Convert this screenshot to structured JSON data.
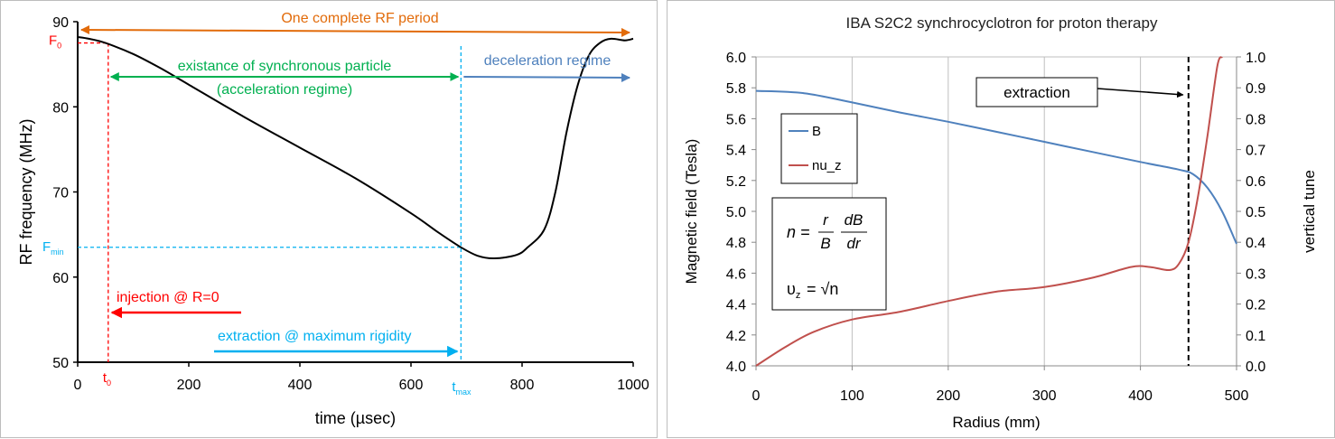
{
  "chart_data": [
    {
      "type": "line",
      "xlabel": "time (µsec)",
      "ylabel": "RF frequency (MHz)",
      "xlim": [
        0,
        1000
      ],
      "ylim": [
        50,
        90
      ],
      "xticks": [
        "0",
        "200",
        "400",
        "600",
        "800",
        "1000"
      ],
      "yticks": [
        "50",
        "60",
        "70",
        "80",
        "90"
      ],
      "series": [
        {
          "name": "RF frequency",
          "color": "#000000",
          "points": [
            [
              0,
              88.2
            ],
            [
              20,
              88.0
            ],
            [
              50,
              87.5
            ],
            [
              100,
              86.2
            ],
            [
              150,
              84.5
            ],
            [
              200,
              82.6
            ],
            [
              300,
              78.8
            ],
            [
              400,
              75.2
            ],
            [
              500,
              71.6
            ],
            [
              600,
              67.5
            ],
            [
              650,
              65.2
            ],
            [
              690,
              63.5
            ],
            [
              720,
              62.5
            ],
            [
              750,
              62.2
            ],
            [
              790,
              62.6
            ],
            [
              810,
              63.5
            ],
            [
              840,
              65.6
            ],
            [
              860,
              70.0
            ],
            [
              880,
              77.0
            ],
            [
              900,
              82.5
            ],
            [
              920,
              86.0
            ],
            [
              940,
              87.5
            ],
            [
              960,
              88.0
            ],
            [
              985,
              87.8
            ],
            [
              1000,
              88.0
            ]
          ]
        }
      ],
      "annotations": {
        "rf_period": "One complete RF period",
        "f0_main": "F",
        "f0_sub": "0",
        "fmin_main": "F",
        "fmin_sub": "min",
        "t0_main": "t",
        "t0_sub": "0",
        "tmax_main": "t",
        "tmax_sub": "max",
        "sync_line1": "existance of synchronous particle",
        "sync_line2": "(acceleration regime)",
        "decel": "deceleration regime",
        "injection": "injection @ R=0",
        "extraction": "extraction @ maximum rigidity"
      },
      "markers": {
        "F0": 87.5,
        "Fmin": 63.5,
        "t0": 55,
        "tmax": 690
      },
      "colors": {
        "orange": "#e26b0a",
        "red": "#ff0000",
        "green": "#00b050",
        "blue": "#4f81bd",
        "cyan": "#00b0f0"
      }
    },
    {
      "type": "line",
      "title": "IBA S2C2 synchrocyclotron for proton therapy",
      "xlabel": "Radius (mm)",
      "ylabel": "Magnetic field (Tesla)",
      "y2label": "vertical tune",
      "xlim": [
        0,
        500
      ],
      "ylim": [
        4.0,
        6.0
      ],
      "y2lim": [
        0.0,
        1.0
      ],
      "xticks": [
        "0",
        "100",
        "200",
        "300",
        "400",
        "500"
      ],
      "yticks": [
        "4.0",
        "4.2",
        "4.4",
        "4.6",
        "4.8",
        "5.0",
        "5.2",
        "5.4",
        "5.6",
        "5.8",
        "6.0"
      ],
      "y2ticks": [
        "0.0",
        "0.1",
        "0.2",
        "0.3",
        "0.4",
        "0.5",
        "0.6",
        "0.7",
        "0.8",
        "0.9",
        "1.0"
      ],
      "grid": "vertical",
      "series": [
        {
          "name": "B",
          "axis": "left",
          "color": "#4f81bd",
          "points": [
            [
              0,
              5.78
            ],
            [
              50,
              5.765
            ],
            [
              100,
              5.705
            ],
            [
              150,
              5.64
            ],
            [
              200,
              5.58
            ],
            [
              250,
              5.515
            ],
            [
              300,
              5.45
            ],
            [
              350,
              5.385
            ],
            [
              400,
              5.32
            ],
            [
              440,
              5.27
            ],
            [
              455,
              5.24
            ],
            [
              470,
              5.15
            ],
            [
              485,
              5.0
            ],
            [
              500,
              4.79
            ]
          ]
        },
        {
          "name": "nu_z",
          "axis": "right",
          "color": "#c0504d",
          "points": [
            [
              0,
              0.0
            ],
            [
              30,
              0.06
            ],
            [
              60,
              0.11
            ],
            [
              100,
              0.15
            ],
            [
              150,
              0.175
            ],
            [
              200,
              0.21
            ],
            [
              250,
              0.24
            ],
            [
              300,
              0.255
            ],
            [
              350,
              0.285
            ],
            [
              390,
              0.32
            ],
            [
              410,
              0.32
            ],
            [
              430,
              0.31
            ],
            [
              440,
              0.33
            ],
            [
              450,
              0.4
            ],
            [
              460,
              0.55
            ],
            [
              470,
              0.75
            ],
            [
              480,
              0.97
            ],
            [
              485,
              1.0
            ]
          ]
        }
      ],
      "extraction_radius": 450,
      "extraction_label": "extraction",
      "legend": {
        "position": "left-middle",
        "entries": [
          "B",
          "nu_z"
        ]
      },
      "formula": {
        "n_lhs": "n =",
        "n_num1": "r",
        "n_den1": "B",
        "n_num2": "dB",
        "n_den2": "dr",
        "nu_lhs": "υ",
        "nu_sub": "z",
        "nu_eq": "= √n"
      }
    }
  ]
}
